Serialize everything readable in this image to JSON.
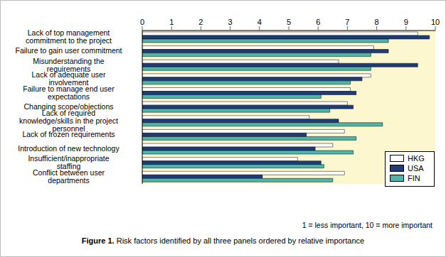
{
  "chart_data": {
    "type": "bar",
    "orientation": "horizontal",
    "title": "Figure 1. Risk factors identified by all three panels ordered by relative importance",
    "annotations": [
      "1 = less important, 10 = more important"
    ],
    "categories": [
      "Lack of top management commitment to the project",
      "Failure to gain user commitment",
      "Misunderstanding the requirements",
      "Lack of adequate user involvement",
      "Failure to manage end user expectations",
      "Changing scope/objections",
      "Lack of required knowledge/skills in the project personnel",
      "Lack of frozen requirements",
      "Introduction of new technology",
      "Insufficient/inappropriate staffing",
      "Conflict between user departments"
    ],
    "series": [
      {
        "name": "HKG",
        "color": "#ffffff",
        "values": [
          9.4,
          7.9,
          6.7,
          7.8,
          7.1,
          7.0,
          5.7,
          6.9,
          6.5,
          5.3,
          6.9
        ]
      },
      {
        "name": "USA",
        "color": "#1f3c78",
        "values": [
          9.8,
          8.4,
          9.4,
          7.5,
          7.3,
          7.2,
          6.7,
          5.6,
          5.9,
          6.1,
          4.1
        ]
      },
      {
        "name": "FIN",
        "color": "#4fb5a8",
        "values": [
          8.4,
          7.8,
          7.8,
          7.1,
          6.1,
          6.4,
          8.2,
          7.3,
          7.2,
          6.2,
          6.5
        ]
      }
    ],
    "xlim": [
      0,
      10
    ],
    "xticks": [
      0,
      1,
      2,
      3,
      4,
      5,
      6,
      7,
      8,
      9,
      10
    ],
    "grid": false,
    "legend": "lower right"
  }
}
